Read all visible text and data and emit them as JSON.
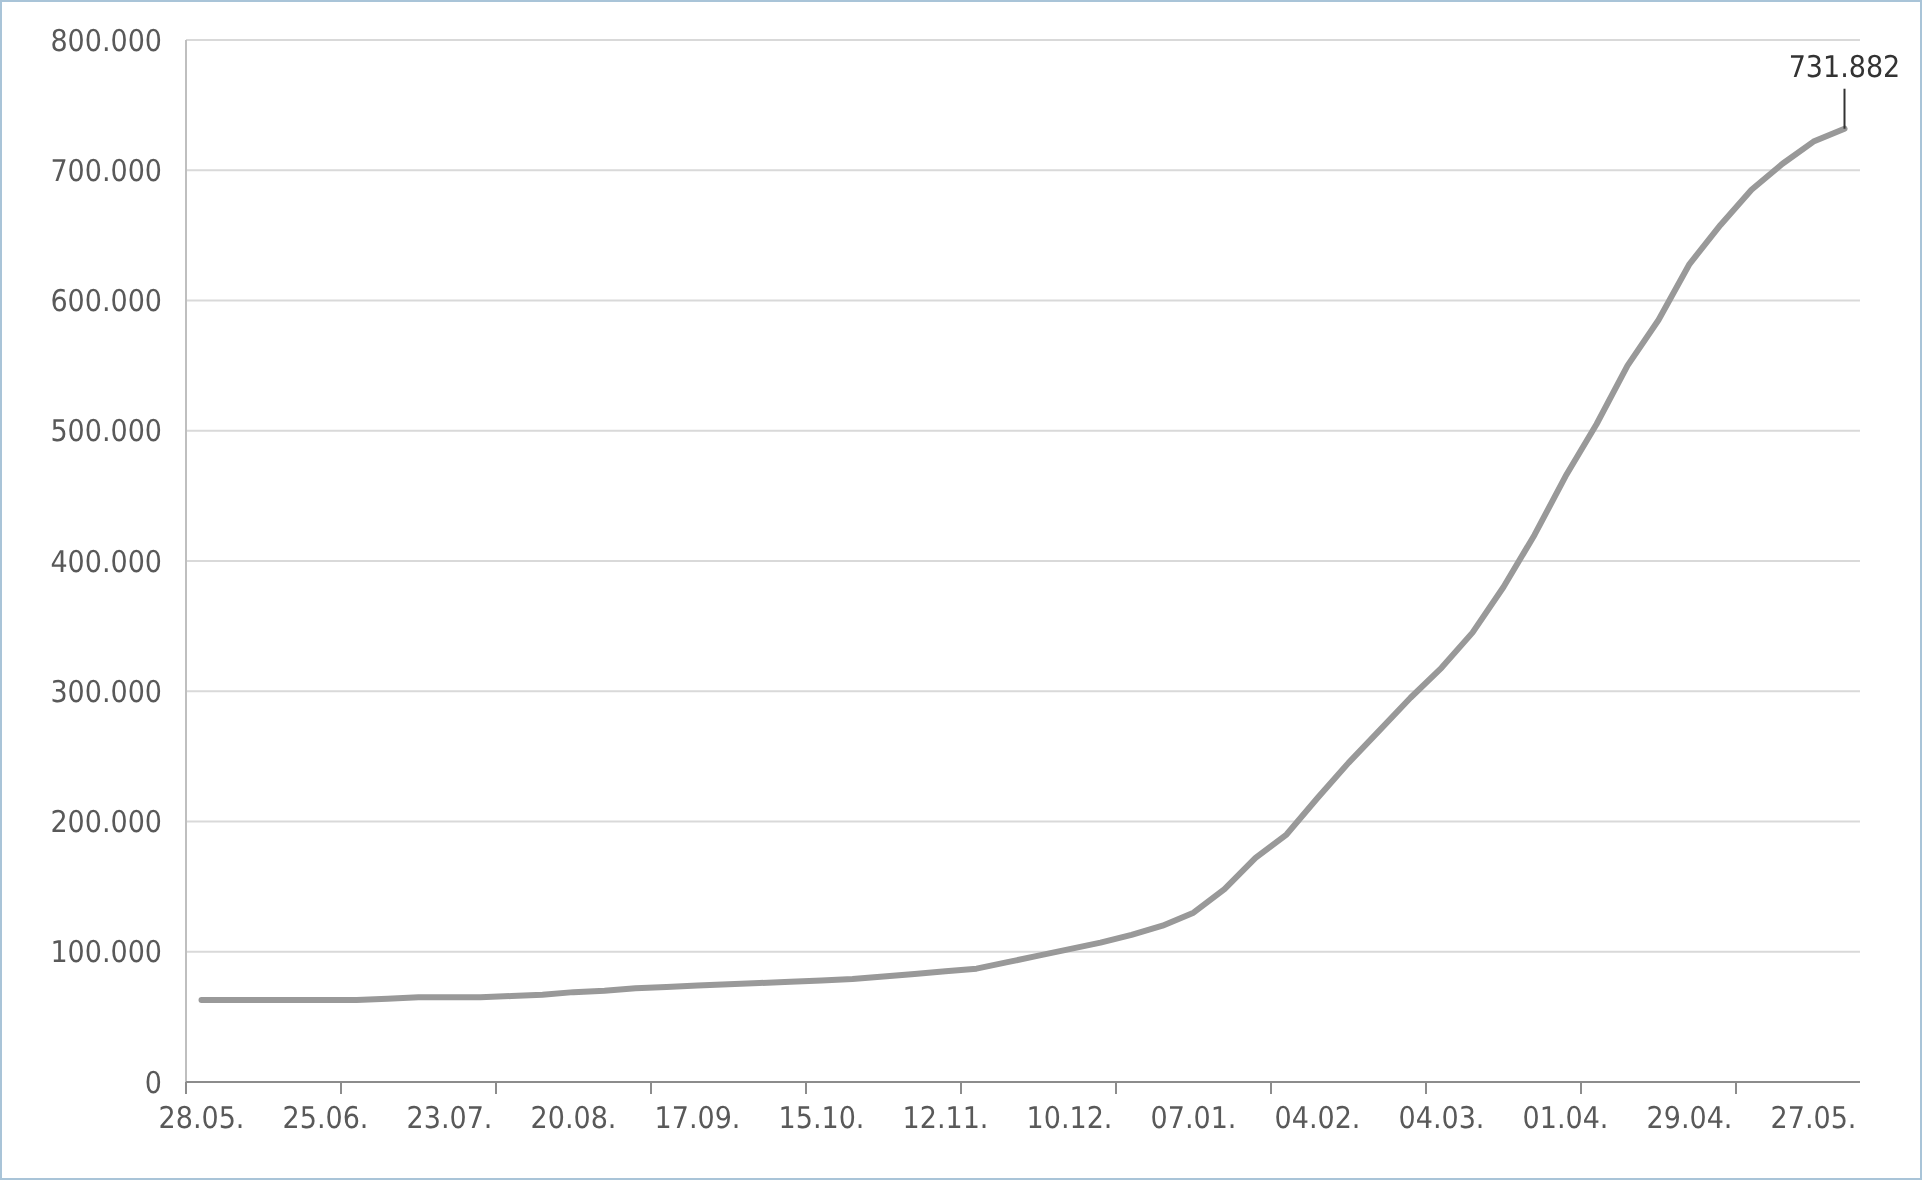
{
  "chart_data": {
    "type": "line",
    "categories": [
      "28.05.",
      null,
      null,
      null,
      "25.06.",
      null,
      null,
      null,
      "23.07.",
      null,
      null,
      null,
      "20.08.",
      null,
      null,
      null,
      "17.09.",
      null,
      null,
      null,
      "15.10.",
      null,
      null,
      null,
      "12.11.",
      null,
      null,
      null,
      "10.12.",
      null,
      null,
      null,
      "07.01.",
      null,
      null,
      null,
      "04.02.",
      null,
      null,
      null,
      "04.03.",
      null,
      null,
      null,
      "01.04.",
      null,
      null,
      null,
      "29.04.",
      null,
      null,
      null,
      "27.05.",
      null
    ],
    "series": [
      {
        "color": "#999999",
        "values": [
          63000,
          63000,
          63000,
          63000,
          63000,
          63000,
          64000,
          65000,
          65000,
          65000,
          66000,
          67000,
          69000,
          70000,
          72000,
          73000,
          74000,
          75000,
          76000,
          77000,
          78000,
          79000,
          81000,
          83000,
          85000,
          87000,
          92000,
          97000,
          102000,
          107000,
          113000,
          120000,
          130000,
          148000,
          172000,
          190000,
          218000,
          245000,
          270000,
          295000,
          318000,
          345000,
          380000,
          420000,
          465000,
          505000,
          550000,
          585000,
          628000,
          658000,
          685000,
          705000,
          722000,
          731882
        ]
      }
    ],
    "ylim": [
      0,
      800000
    ],
    "yticks": [
      {
        "value": 0,
        "label": "0"
      },
      {
        "value": 100000,
        "label": "100.000"
      },
      {
        "value": 200000,
        "label": "200.000"
      },
      {
        "value": 300000,
        "label": "300.000"
      },
      {
        "value": 400000,
        "label": "400.000"
      },
      {
        "value": 500000,
        "label": "500.000"
      },
      {
        "value": 600000,
        "label": "600.000"
      },
      {
        "value": 700000,
        "label": "700.000"
      },
      {
        "value": 800000,
        "label": "800.000"
      }
    ],
    "grid": "y",
    "marker": "none",
    "line_style": "solid",
    "annotations": [
      {
        "text": "731.882",
        "y": 731882
      }
    ]
  }
}
